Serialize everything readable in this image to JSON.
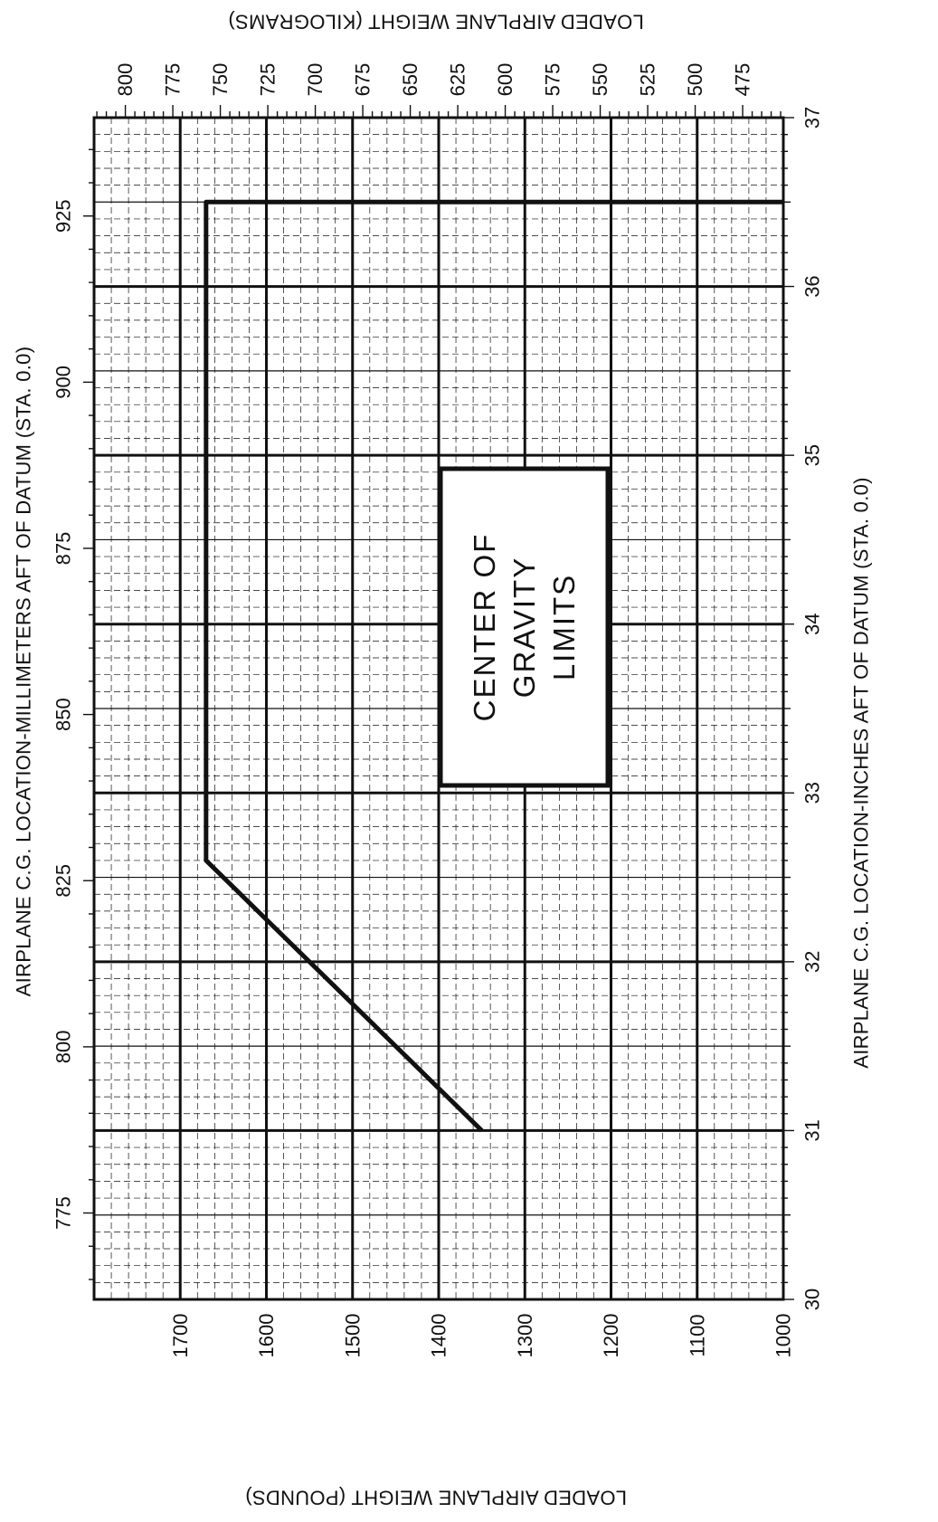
{
  "chart_data": {
    "type": "line",
    "title": "CENTER OF GRAVITY LIMITS",
    "x_inches_label": "AIRPLANE C.G. LOCATION-INCHES AFT OF DATUM (STA. 0.0)",
    "x_mm_label": "AIRPLANE C.G. LOCATION-MILLIMETERS AFT OF DATUM (STA. 0.0)",
    "y_pounds_label": "LOADED AIRPLANE WEIGHT (POUNDS)",
    "y_kg_label": "LOADED AIRPLANE WEIGHT (KILOGRAMS)",
    "x_range_in": [
      30,
      37
    ],
    "y_range_lb": [
      1000,
      1800
    ],
    "x_ticks_in": [
      30,
      31,
      32,
      33,
      34,
      35,
      36,
      37
    ],
    "x_ticks_mm": [
      775,
      800,
      825,
      850,
      875,
      900,
      925
    ],
    "y_ticks_lb": [
      1000,
      1100,
      1200,
      1300,
      1400,
      1500,
      1600,
      1700
    ],
    "y_ticks_kg": [
      475,
      500,
      525,
      550,
      575,
      600,
      625,
      650,
      675,
      700,
      725,
      750,
      775,
      800
    ],
    "grid": true,
    "series": [
      {
        "x": [
          31.0,
          32.6,
          36.5,
          36.5
        ],
        "y": [
          1350,
          1670,
          1670,
          1000
        ]
      }
    ]
  }
}
